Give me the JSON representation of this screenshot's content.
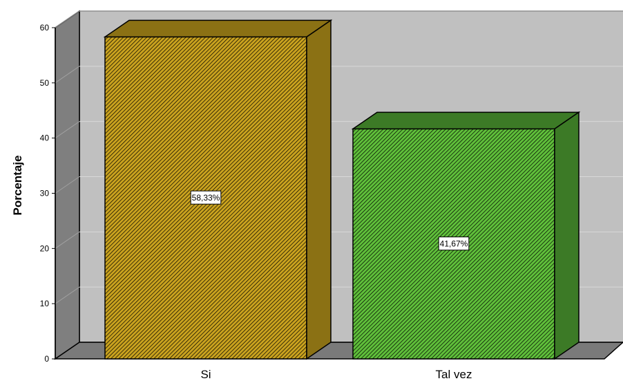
{
  "chart_data": {
    "type": "bar",
    "style": "3d",
    "categories": [
      "Si",
      "Tal vez"
    ],
    "values": [
      58.33,
      41.67
    ],
    "data_labels": [
      "58,33%",
      "41,67%"
    ],
    "ylabel": "Porcentaje",
    "xlabel": "",
    "ylim": [
      0,
      60
    ],
    "yticks": [
      "0",
      "10",
      "20",
      "30",
      "40",
      "50",
      "60"
    ],
    "grid": true,
    "colors": {
      "bars": [
        "#c9a21e",
        "#5fbf3a"
      ],
      "bar_sides": [
        "#8b7114",
        "#3c7a26"
      ],
      "wall": "#c0c0c0",
      "floor": "#7a7a7a",
      "side_wall": "#7f7f7f"
    }
  }
}
